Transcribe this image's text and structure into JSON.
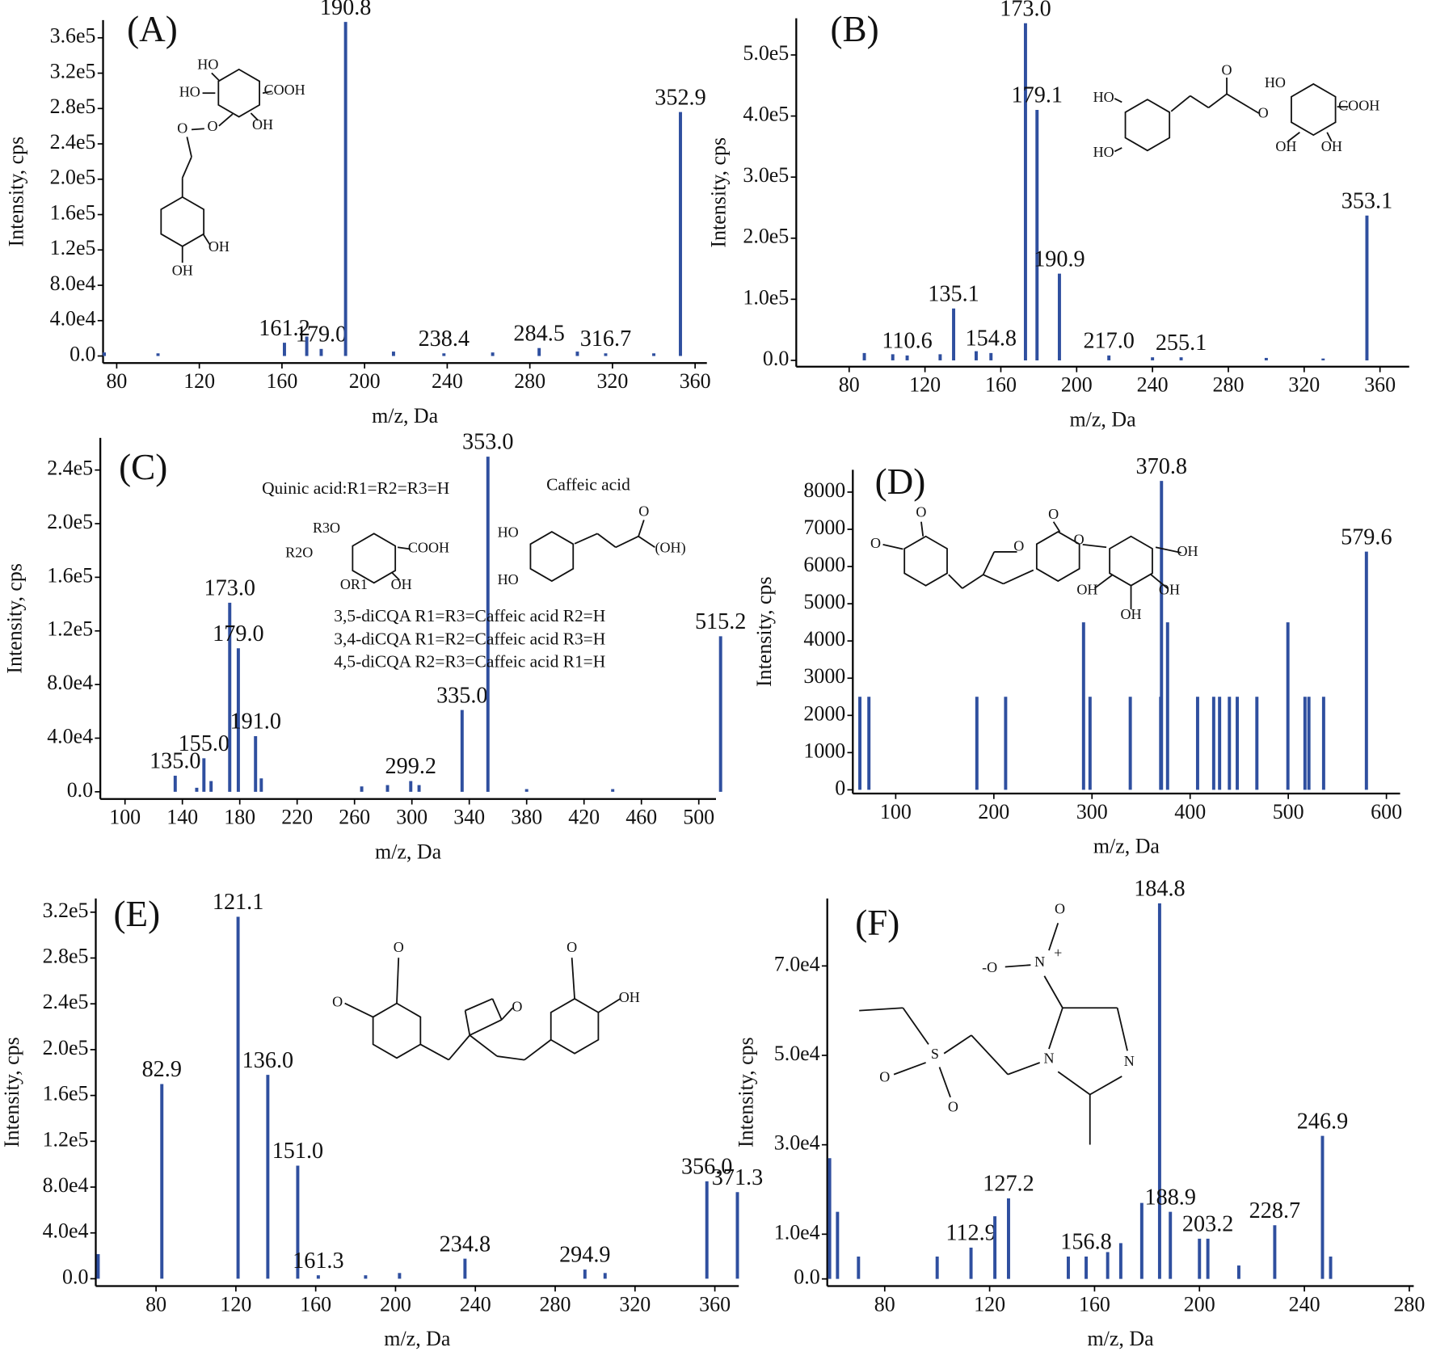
{
  "chart_data": [
    {
      "type": "stem",
      "panel_label": "(A)",
      "xlabel": "m/z, Da",
      "ylabel": "Intensity, cps",
      "color": "#2f4f9f",
      "x": [
        74,
        100,
        161.2,
        172,
        179.0,
        190.8,
        214,
        238.4,
        262,
        284.5,
        303,
        316.7,
        340,
        352.9
      ],
      "values": [
        4000,
        3000,
        15000,
        22000,
        8000,
        378000,
        5000,
        3000,
        4000,
        9000,
        5000,
        3000,
        3000,
        276000
      ],
      "x_labels": [
        null,
        null,
        "161.2",
        null,
        "179.0",
        "190.8",
        null,
        "238.4",
        null,
        "284.5",
        null,
        "316.7",
        null,
        "352.9"
      ],
      "xlim": [
        73.4,
        365.7
      ],
      "ylim": [
        -8000,
        380000
      ],
      "xticks": [
        80,
        120,
        160,
        200,
        240,
        280,
        320,
        360
      ],
      "yticks": [
        {
          "value": 0,
          "label": "0.0"
        },
        {
          "value": 40000,
          "label": "4.0e4"
        },
        {
          "value": 80000,
          "label": "8.0e4"
        },
        {
          "value": 120000,
          "label": "1.2e5"
        },
        {
          "value": 160000,
          "label": "1.6e5"
        },
        {
          "value": 200000,
          "label": "2.0e5"
        },
        {
          "value": 240000,
          "label": "2.4e5"
        },
        {
          "value": 280000,
          "label": "2.8e5"
        },
        {
          "value": 320000,
          "label": "3.2e5"
        },
        {
          "value": 360000,
          "label": "3.6e5"
        }
      ],
      "structure_labels": [
        "HO",
        "HO",
        "COOH",
        "OH",
        "O",
        "O",
        "OH",
        "OH"
      ]
    },
    {
      "type": "stem",
      "panel_label": "(B)",
      "xlabel": "m/z, Da",
      "ylabel": "Intensity, cps",
      "color": "#2f4f9f",
      "x": [
        88,
        103,
        110.6,
        128,
        135.1,
        147,
        154.8,
        173.0,
        179.1,
        190.9,
        217.0,
        240,
        255.1,
        300,
        330,
        353.1
      ],
      "values": [
        12000,
        10000,
        8000,
        10000,
        85000,
        15000,
        12000,
        552000,
        410000,
        142000,
        8000,
        5000,
        5000,
        4000,
        3000,
        237000
      ],
      "x_labels": [
        null,
        null,
        "110.6",
        null,
        "135.1",
        null,
        "154.8",
        "173.0",
        "179.1",
        "190.9",
        "217.0",
        null,
        "255.1",
        null,
        null,
        "353.1"
      ],
      "xlim": [
        52.1,
        375.4
      ],
      "ylim": [
        -10400,
        560000
      ],
      "xticks": [
        80,
        120,
        160,
        200,
        240,
        280,
        320,
        360
      ],
      "yticks": [
        {
          "value": 0,
          "label": "0.0"
        },
        {
          "value": 100000,
          "label": "1.0e5"
        },
        {
          "value": 200000,
          "label": "2.0e5"
        },
        {
          "value": 300000,
          "label": "3.0e5"
        },
        {
          "value": 400000,
          "label": "4.0e5"
        },
        {
          "value": 500000,
          "label": "5.0e5"
        }
      ],
      "structure_labels": [
        "HO",
        "HO",
        "O",
        "O",
        "HO",
        "COOH",
        "OH",
        "OH"
      ]
    },
    {
      "type": "stem",
      "panel_label": "(C)",
      "xlabel": "m/z, Da",
      "ylabel": "Intensity, cps",
      "color": "#2f4f9f",
      "x": [
        135.0,
        150,
        155.0,
        160,
        173.0,
        179.0,
        191.0,
        195,
        265,
        283,
        299.2,
        305,
        335.0,
        353.0,
        380,
        440,
        515.2
      ],
      "values": [
        12000,
        3000,
        25000,
        8000,
        141000,
        107000,
        41500,
        10000,
        4000,
        5000,
        8000,
        5000,
        61000,
        250000,
        2000,
        2000,
        116000
      ],
      "x_labels": [
        "135.0",
        null,
        "155.0",
        null,
        "173.0",
        "179.0",
        "191.0",
        null,
        null,
        null,
        "299.2",
        null,
        "335.0",
        "353.0",
        null,
        null,
        "515.2"
      ],
      "xlim": [
        82.8,
        512
      ],
      "ylim": [
        -5400,
        264000
      ],
      "xticks": [
        100,
        140,
        180,
        220,
        260,
        300,
        340,
        380,
        420,
        460,
        500
      ],
      "yticks": [
        {
          "value": 0,
          "label": "0.0"
        },
        {
          "value": 40000,
          "label": "4.0e4"
        },
        {
          "value": 80000,
          "label": "8.0e4"
        },
        {
          "value": 120000,
          "label": "1.2e5"
        },
        {
          "value": 160000,
          "label": "1.6e5"
        },
        {
          "value": 200000,
          "label": "2.0e5"
        },
        {
          "value": 240000,
          "label": "2.4e5"
        }
      ],
      "structure_labels": [
        "Quinic acid:R1=R2=R3=H",
        "Caffeic acid",
        "R3O",
        "R2O",
        "COOH",
        "OR1",
        "OH",
        "HO",
        "HO",
        "O",
        "(OH)",
        "3,5-diCQA   R1=R3=Caffeic acid  R2=H",
        "3,4-diCQA   R1=R2=Caffeic acid  R3=H",
        "4,5-diCQA   R2=R3=Caffeic acid   R1=H"
      ]
    },
    {
      "type": "stem",
      "panel_label": "(D)",
      "xlabel": "m/z, Da",
      "ylabel": "Intensity, cps",
      "color": "#2f4f9f",
      "x": [
        63.5,
        72.7,
        182.7,
        212,
        291.4,
        298,
        339,
        370,
        370.8,
        377,
        407.6,
        424,
        430,
        440,
        448,
        468,
        499.6,
        517,
        521,
        536,
        579.6
      ],
      "values": [
        2500,
        2500,
        2500,
        2500,
        4500,
        2500,
        2500,
        2500,
        8300,
        4500,
        2500,
        2500,
        2500,
        2500,
        2500,
        2500,
        4500,
        2500,
        2500,
        2500,
        6400
      ],
      "x_labels": [
        null,
        null,
        null,
        null,
        null,
        null,
        null,
        null,
        "370.8",
        null,
        null,
        null,
        null,
        null,
        null,
        null,
        null,
        null,
        null,
        null,
        "579.6"
      ],
      "xlim": [
        56.3,
        613.9
      ],
      "ylim": [
        -100,
        8600
      ],
      "xticks": [
        100,
        200,
        300,
        400,
        500,
        600
      ],
      "yticks": [
        0,
        1000,
        2000,
        3000,
        4000,
        5000,
        6000,
        7000,
        8000
      ],
      "structure_labels": [
        "O",
        "O",
        "O",
        "O",
        "O",
        "OH",
        "OH",
        "OH",
        "OH"
      ]
    },
    {
      "type": "stem",
      "panel_label": "(E)",
      "xlabel": "m/z, Da",
      "ylabel": "Intensity, cps",
      "color": "#2f4f9f",
      "x": [
        51,
        82.9,
        121.1,
        136.0,
        151.0,
        161.3,
        185,
        202,
        234.8,
        294.9,
        305,
        356.0,
        371.3
      ],
      "values": [
        21500,
        170000,
        316000,
        178000,
        98700,
        3000,
        3000,
        5000,
        17500,
        8000,
        5000,
        85000,
        75600
      ],
      "x_labels": [
        null,
        "82.9",
        "121.1",
        "136.0",
        "151.0",
        "161.3",
        null,
        null,
        "234.8",
        "294.9",
        null,
        "356.0",
        "371.3"
      ],
      "xlim": [
        49.8,
        372
      ],
      "ylim": [
        -6400,
        332000
      ],
      "xticks": [
        80,
        120,
        160,
        200,
        240,
        280,
        320,
        360
      ],
      "yticks": [
        {
          "value": 0,
          "label": "0.0"
        },
        {
          "value": 40000,
          "label": "4.0e4"
        },
        {
          "value": 80000,
          "label": "8.0e4"
        },
        {
          "value": 120000,
          "label": "1.2e5"
        },
        {
          "value": 160000,
          "label": "1.6e5"
        },
        {
          "value": 200000,
          "label": "2.0e5"
        },
        {
          "value": 240000,
          "label": "2.4e5"
        },
        {
          "value": 280000,
          "label": "2.8e5"
        },
        {
          "value": 320000,
          "label": "3.2e5"
        }
      ],
      "structure_labels": [
        "O",
        "O",
        "O",
        "O",
        "OH"
      ]
    },
    {
      "type": "stem",
      "panel_label": "(F)",
      "xlabel": "m/z, Da",
      "ylabel": "Intensity, cps",
      "color": "#2f4f9f",
      "x": [
        59,
        62,
        70,
        100,
        112.9,
        122,
        127.2,
        150,
        156.8,
        165,
        170,
        178,
        184.8,
        188.9,
        200,
        203.2,
        215,
        228.7,
        246.9,
        250
      ],
      "values": [
        27000,
        15000,
        5000,
        5000,
        7000,
        14000,
        18000,
        5000,
        5000,
        6000,
        8000,
        17000,
        84000,
        15000,
        9000,
        9000,
        3000,
        12000,
        32000,
        5000
      ],
      "x_labels": [
        null,
        null,
        null,
        null,
        "112.9",
        null,
        "127.2",
        null,
        "156.8",
        null,
        null,
        null,
        "184.8",
        "188.9",
        null,
        "203.2",
        null,
        "228.7",
        "246.9",
        null
      ],
      "xlim": [
        58.1,
        281.7
      ],
      "ylim": [
        -1600,
        85100
      ],
      "xticks": [
        80,
        120,
        160,
        200,
        240,
        280
      ],
      "yticks": [
        {
          "value": 0,
          "label": "0.0"
        },
        {
          "value": 10000,
          "label": "1.0e4"
        },
        {
          "value": 30000,
          "label": "3.0e4"
        },
        {
          "value": 50000,
          "label": "5.0e4"
        },
        {
          "value": 70000,
          "label": "7.0e4"
        }
      ],
      "structure_labels": [
        "O",
        "-O",
        "N",
        "+",
        "S",
        "O",
        "O",
        "N",
        "N"
      ]
    }
  ]
}
